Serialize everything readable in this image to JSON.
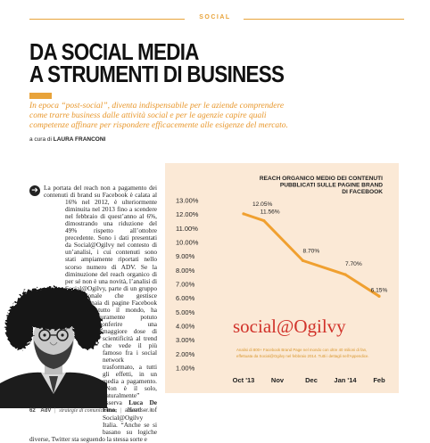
{
  "section_label": "SOCIAL",
  "title_lines": [
    "DA SOCIAL MEDIA",
    "A STRUMENTI DI BUSINESS"
  ],
  "deck": "In epoca “post-social”, diventa indispensabile per le aziende comprendere come trarre business dalle attività social e per le agenzie capire quali competenze affinare per rispondere efficacemente alle esigenze del mercato.",
  "byline_prefix": "a cura di",
  "byline_author": "LAURA FRANCONI",
  "body_before": "La portata del reach non a pagamento dei contenuti di brand su Facebook è calata al 16% nel 2012, è ulteriormente diminuita nel 2013 fino a scendere nel febbraio di quest’anno al 6%, dimostrando una riduzione del 49% rispetto all’ottobre precedente. Sono i dati presentati da Social@Ogilvy nel contesto di un’analisi, i cui contenuti sono stati ampiamente riportati nello scorso numero di ADV. Se la diminuzione del reach organico di per sé non è una novità, l’analisi di Social@Ogilvy, parte di un gruppo internazionale che gestisce centinaia di pagine Facebook in tutto il mondo, ha sicuramente potuto conferire una maggiore dose di scientificità al trend che vede il più famoso fra i social network trasformato, a tutti gli effetti, in un media a pagamento. “Non è il solo, naturalmente” osserva",
  "body_name": "Luca De Fino",
  "body_after": ", Head of Social@Ogilvy Italia. “Anche se si basano su logiche diverse, Twitter sta seguendo la stessa sorte e",
  "chart_data": {
    "type": "line",
    "title": "REACH ORGANICO MEDIO DEI CONTENUTI PUBBLICATI SULLE PAGINE BRAND DI FACEBOOK",
    "title_lines": [
      "REACH ORGANICO MEDIO DEI CONTENUTI",
      "PUBBLICATI SULLE PAGINE BRAND",
      "DI FACEBOOK"
    ],
    "x": [
      "Oct '13",
      "Nov",
      "Dec",
      "Jan '14",
      "Feb"
    ],
    "points": [
      {
        "x": 0.0,
        "y": 12.05,
        "label": "12.05%"
      },
      {
        "x": 0.6,
        "y": 11.56,
        "label": "11.56%"
      },
      {
        "x": 1.75,
        "y": 8.7,
        "label": "8.70%"
      },
      {
        "x": 3.0,
        "y": 7.7,
        "label": "7.70%"
      },
      {
        "x": 4.0,
        "y": 6.15,
        "label": "6.15%"
      }
    ],
    "yticks": [
      "13.00%",
      "12.00%",
      "11.00%",
      "10.00%",
      "9.00%",
      "8.00%",
      "7.00%",
      "6.00%",
      "5.00%",
      "4.00%",
      "3.00%",
      "2.00%",
      "1.00%"
    ],
    "ylim": [
      1,
      13
    ],
    "line_color": "#f0a030",
    "logo_text": "social@Ogilvy",
    "footnote_lines": [
      "Analisi di 800+ Facebook Brand Page nel mondo con oltre 40 milioni di fan,",
      "effettuata da Social@Ogilvy nel febbraio 2014. Tutti i dettagli nell’Appendice."
    ]
  },
  "footer": {
    "page_number": "62",
    "brand": "AdV",
    "tagline": "strategie di comunicazione",
    "website": "advertiser.it"
  },
  "colors": {
    "accent": "#e8a33a",
    "deck": "#e8972c",
    "chart_bg": "#fbe9d6"
  }
}
